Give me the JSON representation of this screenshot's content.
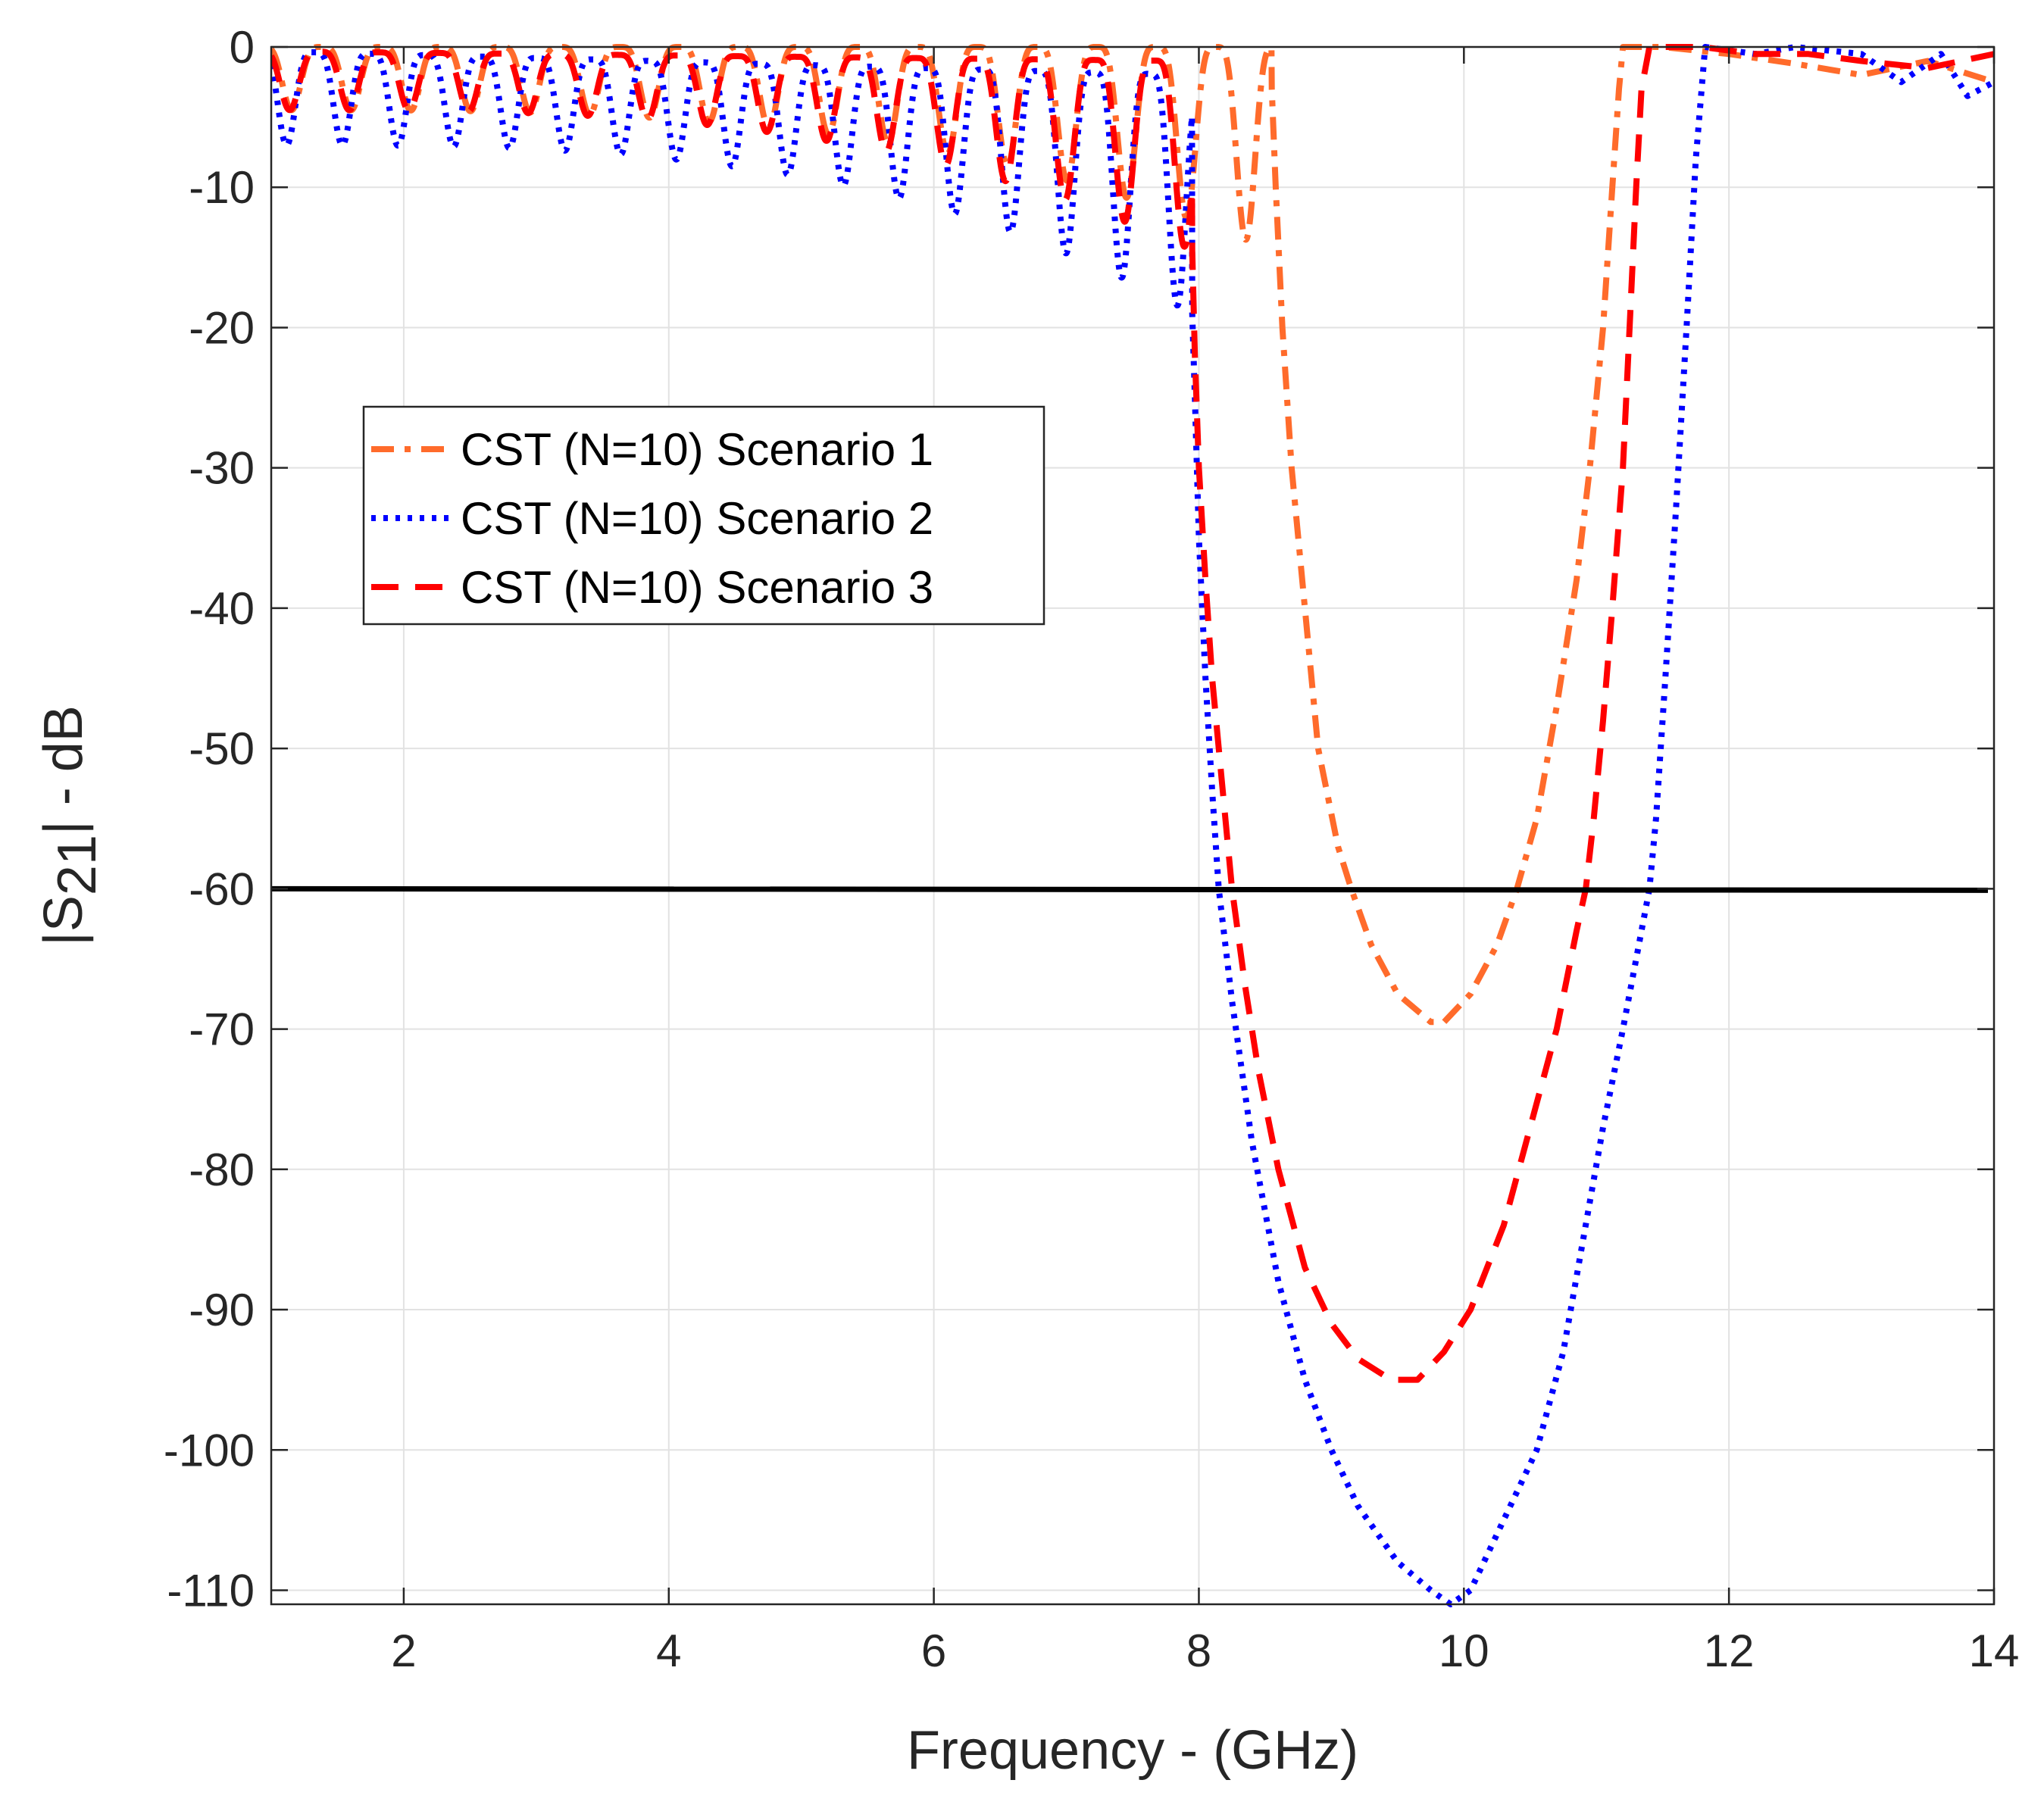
{
  "chart_data": {
    "type": "line",
    "title": "",
    "xlabel": "Frequency - (GHz)",
    "ylabel": {
      "prefix": "|S",
      "subscript": "21",
      "suffix": "| - dB"
    },
    "xlim": [
      1,
      14
    ],
    "ylim": [
      -111,
      0
    ],
    "xticks": [
      2,
      4,
      6,
      8,
      10,
      12,
      14
    ],
    "yticks": [
      0,
      -10,
      -20,
      -30,
      -40,
      -50,
      -60,
      -70,
      -80,
      -90,
      -100,
      -110
    ],
    "grid": true,
    "legend_position": "upper-left",
    "reference_line": {
      "y": -60,
      "color": "#000000"
    },
    "series": [
      {
        "name": "CST (N=10) Scenario 1",
        "color": "#FF6B2B",
        "style": "dash-dot",
        "ripple": {
          "x_end": 8.55,
          "period": 0.45,
          "phase": 1.0,
          "min_start": -4.5,
          "min_end": -14.5,
          "floor_start": 0,
          "floor_end": 0
        },
        "points": [
          [
            8.55,
            -3
          ],
          [
            8.58,
            -10
          ],
          [
            8.63,
            -20
          ],
          [
            8.7,
            -30
          ],
          [
            8.8,
            -40
          ],
          [
            8.9,
            -50
          ],
          [
            9.05,
            -57
          ],
          [
            9.15,
            -60
          ],
          [
            9.3,
            -64
          ],
          [
            9.5,
            -67.5
          ],
          [
            9.75,
            -69.5
          ],
          [
            9.85,
            -69.5
          ],
          [
            10.05,
            -67.5
          ],
          [
            10.25,
            -64
          ],
          [
            10.4,
            -60
          ],
          [
            10.55,
            -55
          ],
          [
            10.7,
            -47
          ],
          [
            10.85,
            -38
          ],
          [
            10.95,
            -30
          ],
          [
            11.05,
            -20
          ],
          [
            11.12,
            -10
          ],
          [
            11.17,
            -3
          ],
          [
            11.2,
            0
          ],
          [
            11.5,
            0
          ],
          [
            12.0,
            -0.5
          ],
          [
            12.5,
            -1.2
          ],
          [
            13.0,
            -2
          ],
          [
            13.5,
            -1
          ],
          [
            14.0,
            -2.5
          ]
        ]
      },
      {
        "name": "CST (N=10) Scenario 2",
        "color": "#0000FF",
        "style": "dotted",
        "ripple": {
          "x_end": 7.95,
          "period": 0.42,
          "phase": 1.4,
          "min_start": -7,
          "min_end": -19,
          "floor_start": -0.3,
          "floor_end": -2
        },
        "points": [
          [
            7.95,
            -19
          ],
          [
            7.97,
            -25
          ],
          [
            8.0,
            -35
          ],
          [
            8.05,
            -45
          ],
          [
            8.1,
            -53
          ],
          [
            8.15,
            -60
          ],
          [
            8.25,
            -68
          ],
          [
            8.4,
            -78
          ],
          [
            8.6,
            -88
          ],
          [
            8.8,
            -95
          ],
          [
            9.0,
            -100
          ],
          [
            9.2,
            -104
          ],
          [
            9.5,
            -108
          ],
          [
            9.75,
            -110
          ],
          [
            9.9,
            -111
          ],
          [
            10.05,
            -110
          ],
          [
            10.2,
            -107
          ],
          [
            10.35,
            -104
          ],
          [
            10.55,
            -100
          ],
          [
            10.75,
            -93
          ],
          [
            10.9,
            -85
          ],
          [
            11.05,
            -77
          ],
          [
            11.2,
            -70
          ],
          [
            11.3,
            -65
          ],
          [
            11.4,
            -60
          ],
          [
            11.45,
            -55
          ],
          [
            11.52,
            -45
          ],
          [
            11.6,
            -33
          ],
          [
            11.68,
            -20
          ],
          [
            11.75,
            -8
          ],
          [
            11.82,
            0
          ],
          [
            12.2,
            -0.5
          ],
          [
            12.5,
            0
          ],
          [
            13.0,
            -0.5
          ],
          [
            13.3,
            -2.5
          ],
          [
            13.6,
            -0.5
          ],
          [
            13.8,
            -3.5
          ],
          [
            14.0,
            -2.5
          ]
        ]
      },
      {
        "name": "CST (N=10) Scenario 3",
        "color": "#FF0000",
        "style": "dashed",
        "ripple": {
          "x_end": 7.95,
          "period": 0.45,
          "phase": 1.2,
          "min_start": -4.5,
          "min_end": -14.5,
          "floor_start": -0.3,
          "floor_end": -1
        },
        "points": [
          [
            7.95,
            -14.5
          ],
          [
            7.97,
            -22
          ],
          [
            8.0,
            -30
          ],
          [
            8.05,
            -38
          ],
          [
            8.1,
            -45
          ],
          [
            8.17,
            -52
          ],
          [
            8.25,
            -60
          ],
          [
            8.35,
            -67
          ],
          [
            8.45,
            -73
          ],
          [
            8.6,
            -80
          ],
          [
            8.8,
            -87
          ],
          [
            9.0,
            -91
          ],
          [
            9.2,
            -93.5
          ],
          [
            9.45,
            -95
          ],
          [
            9.65,
            -95
          ],
          [
            9.85,
            -93
          ],
          [
            10.05,
            -90
          ],
          [
            10.3,
            -84
          ],
          [
            10.5,
            -77
          ],
          [
            10.7,
            -70
          ],
          [
            10.85,
            -63
          ],
          [
            10.92,
            -60
          ],
          [
            10.98,
            -55
          ],
          [
            11.05,
            -48
          ],
          [
            11.12,
            -40
          ],
          [
            11.2,
            -30
          ],
          [
            11.25,
            -20
          ],
          [
            11.3,
            -10
          ],
          [
            11.34,
            -3
          ],
          [
            11.4,
            0
          ],
          [
            11.8,
            0
          ],
          [
            12.2,
            -0.5
          ],
          [
            12.6,
            -0.5
          ],
          [
            13.0,
            -1
          ],
          [
            13.5,
            -1.5
          ],
          [
            14.0,
            -0.5
          ]
        ]
      }
    ]
  }
}
